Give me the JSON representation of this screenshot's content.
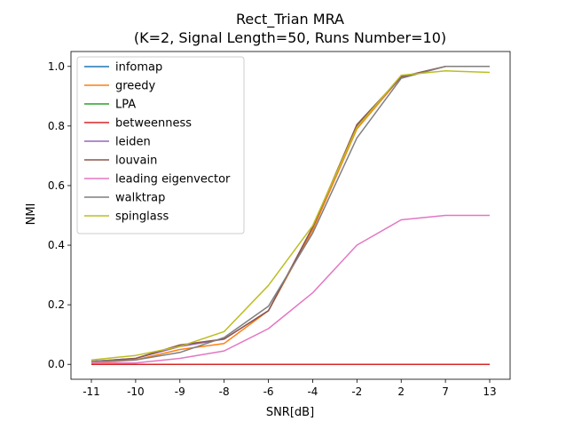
{
  "chart_data": {
    "type": "line",
    "title": "Rect_Trian MRA",
    "subtitle": "(K=2, Signal Length=50, Runs Number=10)",
    "xlabel": "SNR[dB]",
    "ylabel": "NMI",
    "categories": [
      "-11",
      "-10",
      "-9",
      "-8",
      "-6",
      "-4",
      "-2",
      "2",
      "7",
      "13"
    ],
    "ylim": [
      -0.05,
      1.05
    ],
    "yticks": [
      "0.0",
      "0.2",
      "0.4",
      "0.6",
      "0.8",
      "1.0"
    ],
    "grid": false,
    "legend_position": "upper-left",
    "series": [
      {
        "name": "infomap",
        "color": "#1f77b4",
        "values": [
          0,
          0,
          0,
          0,
          0,
          0,
          0,
          0,
          0,
          0
        ]
      },
      {
        "name": "greedy",
        "color": "#ff7f0e",
        "values": [
          0.005,
          0.015,
          0.05,
          0.07,
          0.18,
          0.45,
          0.79,
          0.965,
          1.0,
          1.0
        ]
      },
      {
        "name": "LPA",
        "color": "#2ca02c",
        "values": [
          0,
          0,
          0,
          0,
          0,
          0,
          0,
          0,
          0,
          0
        ]
      },
      {
        "name": "betweenness",
        "color": "#d62728",
        "values": [
          0,
          0,
          0,
          0,
          0,
          0,
          0,
          0,
          0,
          0
        ]
      },
      {
        "name": "leiden",
        "color": "#9467bd",
        "values": [
          0.01,
          0.02,
          0.06,
          0.085,
          0.18,
          0.46,
          0.8,
          0.965,
          1.0,
          1.0
        ]
      },
      {
        "name": "louvain",
        "color": "#8c564b",
        "values": [
          0.01,
          0.02,
          0.065,
          0.085,
          0.18,
          0.46,
          0.805,
          0.965,
          1.0,
          1.0
        ]
      },
      {
        "name": "leading eigenvector",
        "color": "#e377c2",
        "values": [
          0.005,
          0.005,
          0.02,
          0.045,
          0.12,
          0.24,
          0.4,
          0.485,
          0.5,
          0.5
        ]
      },
      {
        "name": "walktrap",
        "color": "#7f7f7f",
        "values": [
          0.01,
          0.015,
          0.04,
          0.09,
          0.195,
          0.44,
          0.76,
          0.96,
          1.0,
          1.0
        ]
      },
      {
        "name": "spinglass",
        "color": "#bcbd22",
        "values": [
          0.015,
          0.03,
          0.06,
          0.11,
          0.265,
          0.465,
          0.795,
          0.97,
          0.985,
          0.98
        ]
      }
    ]
  }
}
